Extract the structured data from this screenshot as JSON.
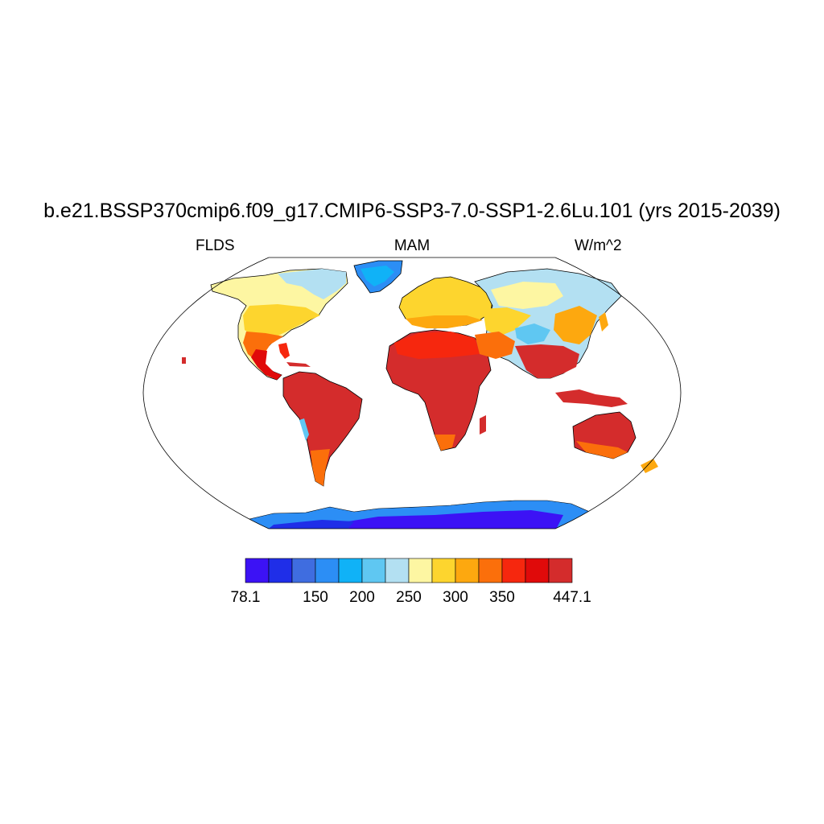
{
  "header": {
    "title": "b.e21.BSSP370cmip6.f09_g17.CMIP6-SSP3-7.0-SSP1-2.6Lu.101 (yrs 2015-2039)",
    "variable": "FLDS",
    "season": "MAM",
    "units": "W/m^2"
  },
  "colorbar": {
    "colors": [
      "#3c12f5",
      "#1f2ee8",
      "#3f6de0",
      "#2c8ef5",
      "#10b2f7",
      "#5fc7f2",
      "#b3e0f2",
      "#fdf6a2",
      "#fdd52e",
      "#fda80f",
      "#fb6f0b",
      "#f6270e",
      "#e00a0a",
      "#d42c2c"
    ],
    "labels": [
      {
        "text": "78.1",
        "boundary": 0
      },
      {
        "text": "150",
        "boundary": 3
      },
      {
        "text": "200",
        "boundary": 5
      },
      {
        "text": "250",
        "boundary": 7
      },
      {
        "text": "300",
        "boundary": 9
      },
      {
        "text": "350",
        "boundary": 11
      },
      {
        "text": "447.1",
        "boundary": 14
      }
    ]
  },
  "map": {
    "projection": "robinson",
    "ocean_color": "#ffffff",
    "outline_color": "#000000"
  }
}
